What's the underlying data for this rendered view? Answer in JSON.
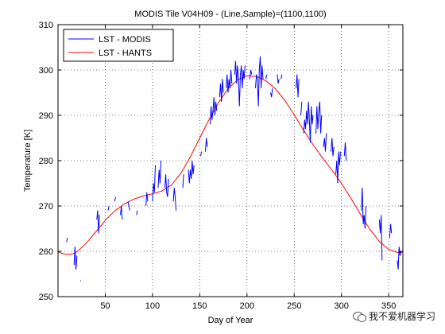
{
  "chart_data": {
    "type": "line",
    "title": "MODIS Tile V04H09 - (Line,Sample)=(1100,1100)",
    "xlabel": "Day of Year",
    "ylabel": "Temperature [K]",
    "xlim": [
      0,
      365
    ],
    "ylim": [
      250,
      310
    ],
    "xticks": [
      50,
      100,
      150,
      200,
      250,
      300,
      350
    ],
    "yticks": [
      250,
      260,
      270,
      280,
      290,
      300,
      310
    ],
    "grid": true,
    "legend_position": "top-left",
    "series": [
      {
        "name": "LST - MODIS",
        "color": "#0000ff",
        "segments": [
          [
            [
              9,
              262
            ],
            [
              10,
              263
            ]
          ],
          [
            [
              17,
              257
            ],
            [
              18,
              261
            ],
            [
              19,
              256
            ],
            [
              20,
              259
            ]
          ],
          [
            [
              24,
              253.5
            ]
          ],
          [
            [
              41,
              267
            ],
            [
              42,
              269
            ],
            [
              43,
              264
            ],
            [
              44,
              268
            ]
          ],
          [
            [
              53,
              269
            ],
            [
              54,
              270
            ]
          ],
          [
            [
              60,
              271
            ],
            [
              61,
              272
            ]
          ],
          [
            [
              66,
              268
            ],
            [
              67,
              270
            ],
            [
              68,
              267
            ]
          ],
          [
            [
              74,
              271
            ],
            [
              75,
              270
            ],
            [
              76,
              269
            ]
          ],
          [
            [
              83,
              268
            ],
            [
              84,
              269
            ]
          ],
          [
            [
              93,
              270
            ],
            [
              94,
              273
            ],
            [
              95,
              271
            ]
          ],
          [
            [
              100,
              271
            ],
            [
              101,
              275
            ],
            [
              102,
              273
            ],
            [
              103,
              279
            ]
          ],
          [
            [
              106,
              274
            ],
            [
              107,
              278
            ],
            [
              108,
              275
            ],
            [
              109,
              280
            ]
          ],
          [
            [
              113,
              274
            ],
            [
              114,
              277
            ],
            [
              115,
              273
            ],
            [
              116,
              272
            ],
            [
              117,
              276
            ]
          ],
          [
            [
              122,
              271
            ],
            [
              123,
              274
            ],
            [
              124,
              272
            ],
            [
              125,
              269
            ]
          ],
          [
            [
              132,
              274
            ],
            [
              133,
              277
            ]
          ],
          [
            [
              138,
              278
            ],
            [
              139,
              275
            ],
            [
              140,
              278
            ],
            [
              141,
              276
            ],
            [
              142,
              280
            ],
            [
              143,
              277
            ],
            [
              144,
              279
            ]
          ],
          [
            [
              151,
              281
            ],
            [
              152,
              282
            ]
          ],
          [
            [
              156,
              282
            ],
            [
              157,
              285
            ],
            [
              158,
              283
            ]
          ],
          [
            [
              161,
              288
            ],
            [
              162,
              292
            ],
            [
              163,
              289
            ],
            [
              164,
              291
            ],
            [
              165,
              294
            ],
            [
              166,
              290
            ],
            [
              167,
              293
            ],
            [
              168,
              291
            ]
          ],
          [
            [
              171,
              294
            ],
            [
              172,
              297
            ],
            [
              173,
              293
            ],
            [
              174,
              298
            ],
            [
              175,
              295
            ]
          ],
          [
            [
              178,
              296
            ],
            [
              179,
              299
            ],
            [
              180,
              295
            ],
            [
              181,
              298
            ],
            [
              182,
              296
            ],
            [
              183,
              300
            ],
            [
              184,
              297
            ]
          ],
          [
            [
              187,
              299
            ],
            [
              188,
              302
            ],
            [
              189,
              297
            ],
            [
              190,
              301
            ],
            [
              191,
              298
            ],
            [
              192,
              292
            ],
            [
              193,
              299
            ],
            [
              194,
              301
            ],
            [
              195,
              296
            ],
            [
              196,
              300
            ],
            [
              197,
              298
            ],
            [
              198,
              301
            ]
          ],
          [
            [
              203,
              298
            ],
            [
              204,
              300
            ],
            [
              205,
              299
            ]
          ],
          [
            [
              209,
              296
            ],
            [
              210,
              299
            ],
            [
              211,
              298
            ],
            [
              212,
              292
            ],
            [
              213,
              300
            ],
            [
              214,
              303
            ],
            [
              215,
              296
            ],
            [
              216,
              301
            ],
            [
              217,
              298
            ]
          ],
          [
            [
              220,
              298
            ],
            [
              221,
              299
            ]
          ],
          [
            [
              225,
              295
            ],
            [
              226,
              294
            ],
            [
              227,
              296
            ]
          ],
          [
            [
              232,
              299
            ],
            [
              233,
              297
            ],
            [
              234,
              298
            ]
          ],
          [
            [
              236,
              298
            ],
            [
              237,
              299
            ]
          ],
          [
            [
              252,
              296
            ],
            [
              253,
              299
            ],
            [
              254,
              294
            ],
            [
              255,
              298
            ]
          ],
          [
            [
              257,
              290
            ],
            [
              258,
              293
            ]
          ],
          [
            [
              260,
              286
            ],
            [
              261,
              289
            ],
            [
              262,
              287
            ],
            [
              263,
              291
            ],
            [
              264,
              288
            ],
            [
              265,
              293
            ],
            [
              266,
              289
            ],
            [
              267,
              284
            ],
            [
              268,
              292
            ],
            [
              269,
              288
            ],
            [
              270,
              290
            ]
          ],
          [
            [
              273,
              286
            ],
            [
              274,
              292
            ],
            [
              275,
              287
            ],
            [
              276,
              291
            ],
            [
              277,
              293
            ],
            [
              278,
              286
            ],
            [
              279,
              290
            ]
          ],
          [
            [
              281,
              283
            ],
            [
              282,
              285
            ],
            [
              283,
              282
            ],
            [
              284,
              286
            ]
          ],
          [
            [
              289,
              282
            ],
            [
              290,
              285
            ],
            [
              291,
              281
            ],
            [
              292,
              283
            ]
          ],
          [
            [
              294,
              277
            ],
            [
              295,
              280
            ],
            [
              296,
              275
            ],
            [
              297,
              282
            ],
            [
              298,
              279
            ],
            [
              299,
              282
            ]
          ],
          [
            [
              303,
              281
            ],
            [
              304,
              284
            ],
            [
              305,
              280
            ]
          ],
          [
            [
              321,
              269
            ],
            [
              322,
              274
            ],
            [
              323,
              266
            ],
            [
              324,
              268
            ],
            [
              325,
              265
            ],
            [
              326,
              270
            ]
          ],
          [
            [
              340,
              267
            ],
            [
              341,
              264
            ],
            [
              342,
              268
            ],
            [
              343,
              258
            ]
          ],
          [
            [
              351,
              263
            ],
            [
              352,
              266
            ],
            [
              353,
              264
            ]
          ],
          [
            [
              359,
              258
            ],
            [
              360,
              256
            ],
            [
              361,
              261
            ],
            [
              362,
              259
            ],
            [
              363,
              260
            ]
          ]
        ]
      },
      {
        "name": "LST - HANTS",
        "color": "#ff0000",
        "x": [
          0,
          5,
          10,
          15,
          20,
          30,
          40,
          50,
          60,
          70,
          80,
          90,
          100,
          110,
          120,
          130,
          140,
          150,
          160,
          170,
          180,
          190,
          200,
          210,
          220,
          230,
          240,
          250,
          260,
          270,
          280,
          290,
          300,
          310,
          320,
          330,
          340,
          350,
          360,
          365
        ],
        "values": [
          259.9,
          259.5,
          259.3,
          259.4,
          259.9,
          261.8,
          264.3,
          266.8,
          268.9,
          270.4,
          271.5,
          272.2,
          272.7,
          273.3,
          274.6,
          277.2,
          280.8,
          285.0,
          289.1,
          292.8,
          295.9,
          297.8,
          298.7,
          298.6,
          297.6,
          295.9,
          293.3,
          290.1,
          286.7,
          283.5,
          280.6,
          277.9,
          275.0,
          271.7,
          268.2,
          264.9,
          262.2,
          260.4,
          259.7,
          259.8
        ]
      }
    ]
  },
  "watermark": {
    "text": "我不爱机器学习"
  }
}
